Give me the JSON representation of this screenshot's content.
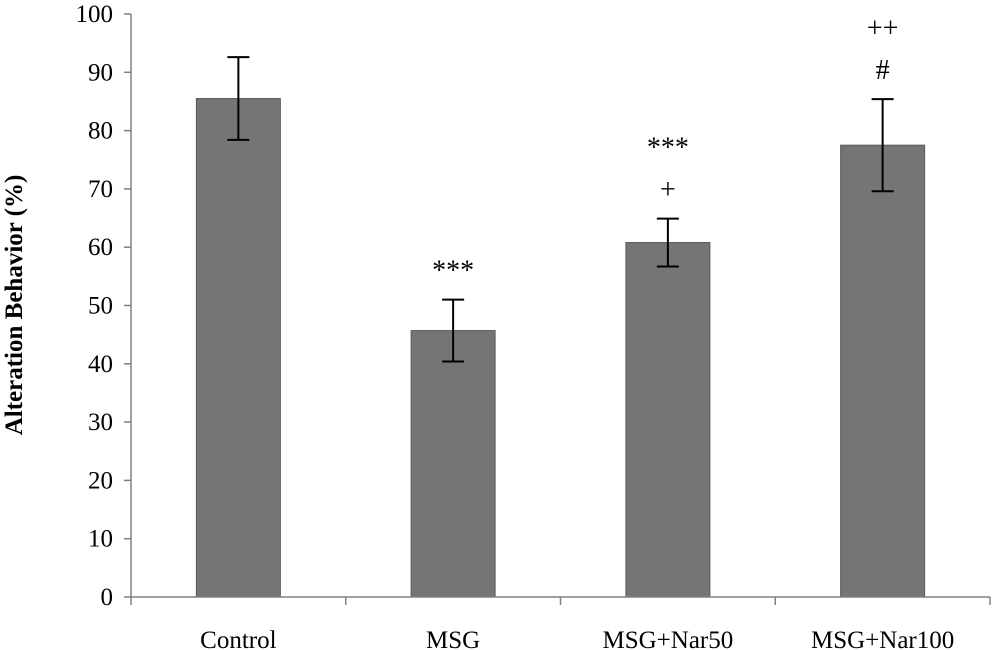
{
  "chart_data": {
    "type": "bar",
    "categories": [
      "Control",
      "MSG",
      "MSG+Nar50",
      "MSG+Nar100"
    ],
    "values": [
      85.5,
      45.7,
      60.8,
      77.5
    ],
    "errors": [
      7.1,
      5.3,
      4.1,
      7.9
    ],
    "annotations": [
      [],
      [
        "***"
      ],
      [
        "***",
        "+"
      ],
      [
        "++",
        "#"
      ]
    ],
    "ylabel": "Alteration Behavior (%)",
    "xlabel": "",
    "ylim": [
      0,
      100
    ],
    "yticks": [
      0,
      10,
      20,
      30,
      40,
      50,
      60,
      70,
      80,
      90,
      100
    ],
    "grid": false,
    "colors": {
      "bar": "#757575",
      "bar_stroke": "#5a5a5a",
      "axis": "#808080",
      "error": "#000000"
    }
  }
}
